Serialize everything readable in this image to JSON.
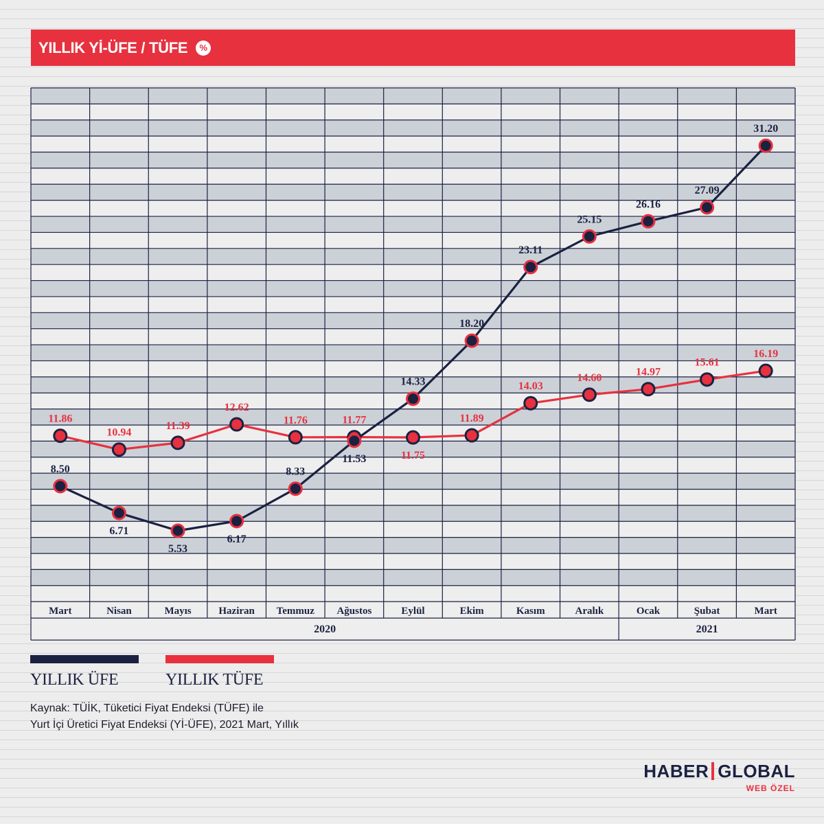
{
  "title": "YILLIK Yİ-ÜFE / TÜFE",
  "title_icon": "percent-icon",
  "title_icon_text": "%",
  "chart_data": {
    "type": "line",
    "title": "YILLIK Yİ-ÜFE / TÜFE",
    "categories": [
      "Mart",
      "Nisan",
      "Mayıs",
      "Haziran",
      "Temmuz",
      "Ağustos",
      "Eylül",
      "Ekim",
      "Kasım",
      "Aralık",
      "Ocak",
      "Şubat",
      "Mart"
    ],
    "years": [
      {
        "label": "2020",
        "from": 0,
        "to": 9
      },
      {
        "label": "2021",
        "from": 10,
        "to": 12
      }
    ],
    "series": [
      {
        "name": "YILLIK ÜFE",
        "color": "#1b2141",
        "values": [
          8.5,
          6.71,
          5.53,
          6.17,
          8.33,
          11.53,
          14.33,
          18.2,
          23.11,
          25.15,
          26.16,
          27.09,
          31.2
        ],
        "labels": [
          "8.50",
          "6.71",
          "5.53",
          "6.17",
          "8.33",
          "11.53",
          "14.33",
          "18.20",
          "23.11",
          "25.15",
          "26.16",
          "27.09",
          "31.20"
        ],
        "label_side": [
          "above",
          "below",
          "below",
          "below",
          "above",
          "below",
          "above",
          "above",
          "above",
          "above",
          "above",
          "above",
          "above"
        ]
      },
      {
        "name": "YILLIK TÜFE",
        "color": "#e7313f",
        "values": [
          11.86,
          10.94,
          11.39,
          12.62,
          11.76,
          11.77,
          11.75,
          11.89,
          14.03,
          14.6,
          14.97,
          15.61,
          16.19
        ],
        "labels": [
          "11.86",
          "10.94",
          "11.39",
          "12.62",
          "11.76",
          "11.77",
          "11.75",
          "11.89",
          "14.03",
          "14.60",
          "14.97",
          "15.61",
          "16.19"
        ],
        "label_side": [
          "above",
          "above",
          "above",
          "above",
          "above",
          "above",
          "below",
          "above",
          "above",
          "above",
          "above",
          "above",
          "above"
        ]
      }
    ],
    "grid": true,
    "legend": "bottom-left"
  },
  "legend": [
    {
      "label": "YILLIK ÜFE",
      "color": "#1b2141"
    },
    {
      "label": "YILLIK TÜFE",
      "color": "#e7313f"
    }
  ],
  "source": {
    "line1": "Kaynak: TÜİK, Tüketici Fiyat Endeksi (TÜFE) ile",
    "line2": "Yurt İçi Üretici Fiyat Endeksi (Yİ-ÜFE), 2021 Mart, Yıllık"
  },
  "logo": {
    "part1": "HABER",
    "part2": "GLOBAL",
    "sub": "WEB ÖZEL"
  }
}
